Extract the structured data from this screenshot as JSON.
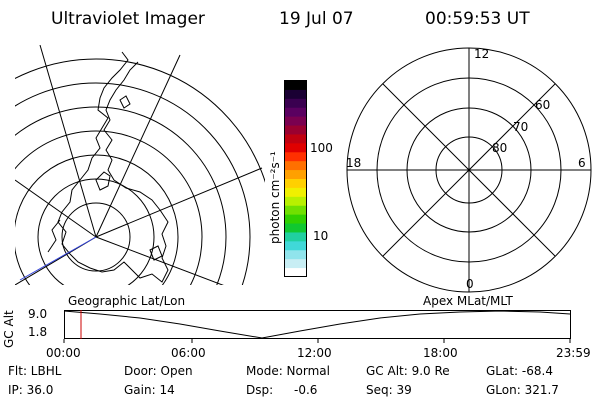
{
  "header": {
    "title": "Ultraviolet Imager",
    "date": "19 Jul 07",
    "time": "00:59:53 UT"
  },
  "colorbar": {
    "unit_label": "photon cm⁻²s⁻¹",
    "ticks": [
      {
        "label": "100",
        "value": 100
      },
      {
        "label": "10",
        "value": 10
      }
    ],
    "colors": [
      "#000000",
      "#1a0033",
      "#3a0050",
      "#5a0060",
      "#7a0050",
      "#9a0030",
      "#c00010",
      "#e00000",
      "#ff3000",
      "#ff7000",
      "#ffa000",
      "#ffd000",
      "#f0f000",
      "#b8f000",
      "#70e000",
      "#30d000",
      "#10c830",
      "#20d0a0",
      "#40d8d8",
      "#90e4ec",
      "#c8eef4",
      "#ffffff"
    ]
  },
  "polar_plot": {
    "mlt_labels": {
      "top": "12",
      "left": "18",
      "right": "6",
      "bottom": "0"
    },
    "lat_labels": [
      "60",
      "70",
      "80"
    ]
  },
  "timeline": {
    "y_axis_label": "GC Alt",
    "y_ticks": [
      "9.0",
      "1.8"
    ],
    "left_caption": "Geographic Lat/Lon",
    "right_caption": "Apex MLat/MLT",
    "x_ticks": [
      "00:00",
      "06:00",
      "12:00",
      "18:00",
      "23:59"
    ],
    "marker_color": "#cc0000"
  },
  "info": {
    "flt": "Flt: LBHL",
    "ip": "IP: 36.0",
    "door": "Door: Open",
    "gain": "Gain: 14",
    "mode": "Mode: Normal",
    "dsp": "Dsp:",
    "dsp_value": "-0.6",
    "gc_alt": "GC Alt: 9.0 Re",
    "seq": "Seq: 39",
    "glat": "GLat: -68.4",
    "glon": "GLon: 321.7"
  }
}
